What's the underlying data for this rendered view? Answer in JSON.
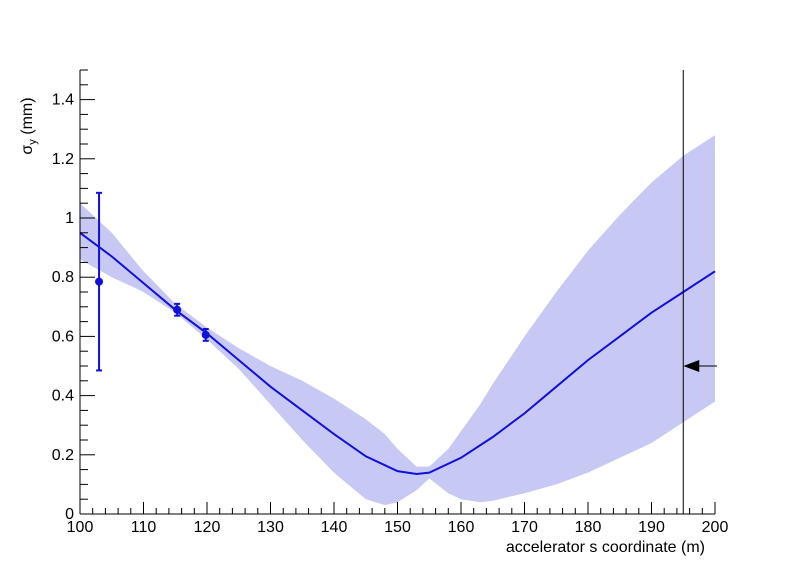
{
  "chart_data": {
    "type": "line",
    "xlabel": "accelerator s coordinate (m)",
    "ylabel": "σ_y (mm)",
    "ylabel_main": "σ",
    "ylabel_sub": "y",
    "ylabel_unit": " (mm)",
    "xlim": [
      100,
      200
    ],
    "ylim": [
      0,
      1.5
    ],
    "x_ticks": [
      100,
      110,
      120,
      130,
      140,
      150,
      160,
      170,
      180,
      190,
      200
    ],
    "x_tick_labels": [
      "100",
      "110",
      "120",
      "130",
      "140",
      "150",
      "160",
      "170",
      "180",
      "190",
      "200"
    ],
    "y_ticks": [
      0,
      0.2,
      0.4,
      0.6,
      0.8,
      1.0,
      1.2,
      1.4
    ],
    "y_tick_labels": [
      "0",
      "0.2",
      "0.4",
      "0.6",
      "0.8",
      "1",
      "1.2",
      "1.4"
    ],
    "grid": false,
    "colors": {
      "line": "#1010dd",
      "band": "#c8c8f5",
      "markers": "#1010dd",
      "axis": "#000000"
    },
    "fit_curve": {
      "x": [
        100,
        105,
        110,
        115,
        120,
        125,
        130,
        135,
        140,
        145,
        150,
        153,
        155,
        160,
        165,
        170,
        175,
        180,
        185,
        190,
        195,
        200
      ],
      "y": [
        0.95,
        0.87,
        0.78,
        0.69,
        0.61,
        0.52,
        0.43,
        0.35,
        0.27,
        0.195,
        0.145,
        0.135,
        0.14,
        0.19,
        0.26,
        0.34,
        0.43,
        0.52,
        0.6,
        0.68,
        0.75,
        0.82
      ]
    },
    "error_band": {
      "x": [
        100,
        105,
        110,
        115,
        120,
        125,
        130,
        135,
        140,
        145,
        148,
        150,
        153,
        155,
        158,
        160,
        163,
        165,
        170,
        175,
        180,
        185,
        190,
        195,
        200
      ],
      "lower": [
        0.86,
        0.8,
        0.75,
        0.68,
        0.59,
        0.49,
        0.37,
        0.25,
        0.14,
        0.05,
        0.03,
        0.04,
        0.08,
        0.12,
        0.07,
        0.05,
        0.04,
        0.045,
        0.07,
        0.1,
        0.14,
        0.19,
        0.24,
        0.31,
        0.38
      ],
      "upper": [
        1.05,
        0.95,
        0.82,
        0.71,
        0.63,
        0.56,
        0.5,
        0.45,
        0.39,
        0.32,
        0.27,
        0.22,
        0.16,
        0.16,
        0.22,
        0.28,
        0.37,
        0.44,
        0.6,
        0.75,
        0.89,
        1.01,
        1.12,
        1.21,
        1.28
      ]
    },
    "data_points": [
      {
        "x": 103,
        "y": 0.785,
        "yerr": 0.3
      },
      {
        "x": 115.3,
        "y": 0.69,
        "yerr": 0.02
      },
      {
        "x": 119.8,
        "y": 0.605,
        "yerr": 0.02
      }
    ],
    "vertical_line_x": 195,
    "arrow_marker": {
      "x": 195,
      "y": 0.5
    }
  }
}
